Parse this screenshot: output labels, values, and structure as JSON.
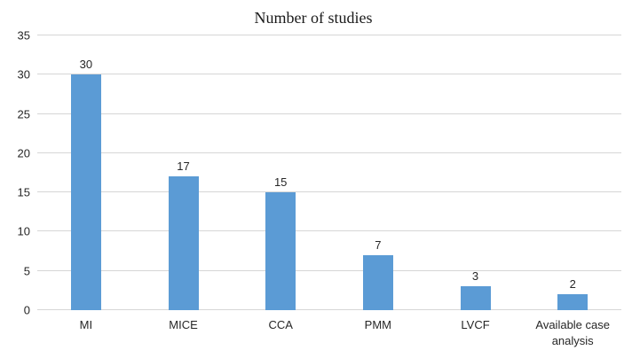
{
  "chart_data": {
    "type": "bar",
    "title": "Number of studies",
    "categories": [
      "MI",
      "MICE",
      "CCA",
      "PMM",
      "LVCF",
      "Available case analysis"
    ],
    "values": [
      30,
      17,
      15,
      7,
      3,
      2
    ],
    "data_labels": [
      "30",
      "17",
      "15",
      "7",
      "3",
      "2"
    ],
    "xlabel": "",
    "ylabel": "",
    "ylim": [
      0,
      35
    ],
    "ytick_step": 5,
    "yticks": [
      0,
      5,
      10,
      15,
      20,
      25,
      30,
      35
    ],
    "grid": true,
    "legend": false,
    "bar_color": "#5B9BD5",
    "gridline_color": "#D6D6D6",
    "text_color": "#262626",
    "title_color": "#1A1A1A",
    "background_color": "#FFFFFF"
  }
}
